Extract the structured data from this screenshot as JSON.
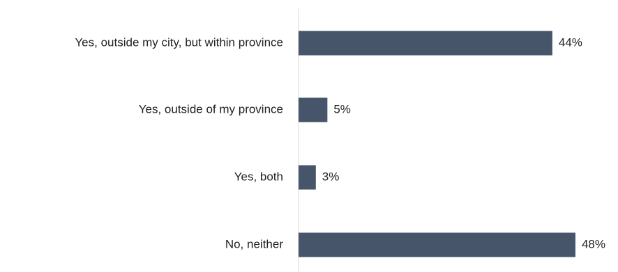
{
  "chart_data": {
    "type": "bar",
    "orientation": "horizontal",
    "categories": [
      "Yes, outside my city, but within province",
      "Yes, outside of my province",
      "Yes, both",
      "No, neither"
    ],
    "values": [
      44,
      5,
      3,
      48
    ],
    "value_labels": [
      "44%",
      "5%",
      "3%",
      "48%"
    ],
    "unit": "%",
    "xlim": [
      0,
      100
    ],
    "grid": false,
    "legend": "none",
    "colors": {
      "bar": "#465569",
      "axis": "#d9d9d9",
      "text": "#222222"
    }
  }
}
